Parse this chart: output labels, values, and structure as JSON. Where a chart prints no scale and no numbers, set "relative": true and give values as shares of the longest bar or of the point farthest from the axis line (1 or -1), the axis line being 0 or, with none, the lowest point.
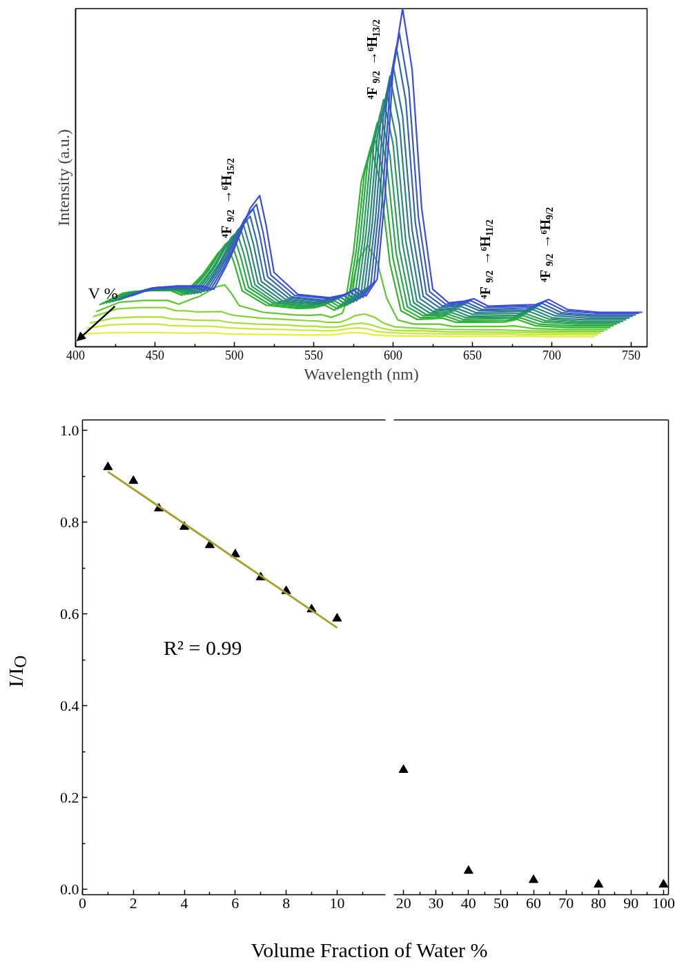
{
  "chart_data": [
    {
      "type": "line",
      "relative": true,
      "xlabel": "Wavelength (nm)",
      "ylabel": "Intensity (a.u.)",
      "xlim": [
        400,
        760
      ],
      "xticks": [
        400,
        {
          "value": 425,
          "label": null
        },
        450,
        {
          "value": 475,
          "label": null
        },
        500,
        {
          "value": 525,
          "label": null
        },
        550,
        {
          "value": 575,
          "label": null
        },
        600,
        {
          "value": 625,
          "label": null
        },
        650,
        {
          "value": 675,
          "label": null
        },
        700,
        {
          "value": 725,
          "label": null
        },
        750
      ],
      "tick_labels": "x",
      "annotations": [
        "V %",
        "⁴F$_{9/2}$→⁶H$_{15/2}$",
        "⁴F$_{9/2}$→⁶H$_{13/2}$",
        "⁴F$_{9/2}$→⁶H$_{11/2}$",
        "⁴F$_{9/2}$→⁶H$_{9/2}$"
      ],
      "series": [
        {
          "color": "#e6ef3a",
          "x": [
            405,
            420,
            435,
            450,
            457,
            465,
            470,
            480,
            486,
            490,
            495,
            510,
            530,
            540,
            547,
            553,
            560,
            565,
            570,
            576,
            582,
            588,
            595,
            605,
            615,
            621,
            630,
            660,
            668,
            680,
            700,
            727
          ],
          "values": [
            0.038,
            0.041,
            0.042,
            0.042,
            0.041,
            0.041,
            0.04,
            0.041,
            0.041,
            0.04,
            0.038,
            0.037,
            0.036,
            0.035,
            0.035,
            0.035,
            0.035,
            0.037,
            0.04,
            0.042,
            0.04,
            0.035,
            0.033,
            0.032,
            0.032,
            0.032,
            0.031,
            0.031,
            0.031,
            0.031,
            0.03,
            0.03
          ]
        },
        {
          "color": "#c8e83a",
          "x": [
            407,
            422,
            437,
            452,
            459,
            467,
            472,
            482,
            488,
            492,
            497,
            512,
            532,
            542,
            549,
            555,
            562,
            567,
            572,
            578,
            584,
            590,
            597,
            607,
            617,
            623,
            632,
            662,
            670,
            682,
            702,
            729
          ],
          "values": [
            0.055,
            0.065,
            0.067,
            0.067,
            0.063,
            0.062,
            0.061,
            0.061,
            0.06,
            0.058,
            0.056,
            0.053,
            0.051,
            0.049,
            0.049,
            0.047,
            0.047,
            0.05,
            0.054,
            0.056,
            0.053,
            0.045,
            0.042,
            0.04,
            0.039,
            0.039,
            0.038,
            0.037,
            0.038,
            0.036,
            0.036,
            0.036
          ]
        },
        {
          "color": "#a8df38",
          "x": [
            409,
            424,
            439,
            454,
            461,
            469,
            474,
            484,
            490,
            494,
            499,
            514,
            534,
            544,
            551,
            557,
            564,
            569,
            574,
            580,
            586,
            592,
            599,
            609,
            619,
            625,
            634,
            664,
            672,
            684,
            704,
            731
          ],
          "values": [
            0.07,
            0.085,
            0.088,
            0.088,
            0.082,
            0.081,
            0.079,
            0.078,
            0.078,
            0.074,
            0.071,
            0.067,
            0.064,
            0.061,
            0.061,
            0.058,
            0.058,
            0.062,
            0.067,
            0.07,
            0.065,
            0.056,
            0.049,
            0.047,
            0.047,
            0.046,
            0.044,
            0.043,
            0.043,
            0.042,
            0.041,
            0.041
          ]
        },
        {
          "color": "#86d535",
          "x": [
            411,
            426,
            441,
            456,
            463,
            471,
            476,
            486,
            492,
            496,
            501,
            516,
            536,
            546,
            553,
            559,
            566,
            571,
            576,
            582,
            588,
            594,
            601,
            611,
            621,
            627,
            636,
            666,
            674,
            686,
            706,
            733
          ],
          "values": [
            0.089,
            0.112,
            0.116,
            0.116,
            0.107,
            0.106,
            0.103,
            0.104,
            0.104,
            0.097,
            0.092,
            0.085,
            0.08,
            0.077,
            0.076,
            0.072,
            0.072,
            0.08,
            0.092,
            0.097,
            0.088,
            0.07,
            0.059,
            0.056,
            0.054,
            0.052,
            0.051,
            0.05,
            0.049,
            0.047,
            0.046,
            0.046
          ]
        },
        {
          "color": "#5cc630",
          "x": [
            413,
            428,
            443,
            458,
            465,
            473,
            478,
            488,
            494,
            498,
            503,
            518,
            538,
            548,
            555,
            561,
            568,
            573,
            578,
            584,
            590,
            596,
            603,
            613,
            623,
            629,
            638,
            668,
            676,
            688,
            708,
            735
          ],
          "values": [
            0.104,
            0.132,
            0.137,
            0.137,
            0.126,
            0.141,
            0.149,
            0.176,
            0.183,
            0.159,
            0.122,
            0.102,
            0.094,
            0.093,
            0.095,
            0.087,
            0.099,
            0.162,
            0.254,
            0.3,
            0.252,
            0.143,
            0.079,
            0.067,
            0.067,
            0.067,
            0.06,
            0.06,
            0.062,
            0.054,
            0.051,
            0.051
          ]
        },
        {
          "color": "#2fb52b",
          "x": [
            415,
            430,
            445,
            460,
            467,
            475,
            480,
            490,
            496,
            500,
            505,
            520,
            540,
            550,
            557,
            563,
            570,
            575,
            580,
            586,
            592,
            598,
            605,
            615,
            625,
            631,
            640,
            670,
            678,
            690,
            710,
            737
          ],
          "values": [
            0.124,
            0.159,
            0.166,
            0.166,
            0.152,
            0.189,
            0.213,
            0.279,
            0.299,
            0.246,
            0.165,
            0.123,
            0.113,
            0.115,
            0.123,
            0.108,
            0.135,
            0.278,
            0.49,
            0.592,
            0.486,
            0.247,
            0.106,
            0.081,
            0.083,
            0.085,
            0.072,
            0.073,
            0.081,
            0.062,
            0.057,
            0.057
          ]
        },
        {
          "color": "#2aae3a",
          "x": [
            417,
            432,
            447,
            462,
            469,
            477,
            482,
            492,
            498,
            502,
            507,
            522,
            542,
            552,
            559,
            565,
            572,
            577,
            582,
            588,
            594,
            600,
            607,
            617,
            627,
            633,
            642,
            672,
            680,
            692,
            712,
            739
          ],
          "values": [
            0.127,
            0.16,
            0.167,
            0.167,
            0.154,
            0.193,
            0.219,
            0.289,
            0.31,
            0.255,
            0.17,
            0.126,
            0.116,
            0.118,
            0.128,
            0.112,
            0.141,
            0.291,
            0.515,
            0.623,
            0.511,
            0.26,
            0.112,
            0.086,
            0.088,
            0.091,
            0.076,
            0.078,
            0.086,
            0.067,
            0.062,
            0.062
          ]
        },
        {
          "color": "#27a64a",
          "x": [
            419,
            434,
            449,
            464,
            471,
            479,
            484,
            494,
            500,
            504,
            509,
            524,
            544,
            554,
            561,
            567,
            574,
            579,
            584,
            590,
            596,
            602,
            609,
            619,
            629,
            635,
            644,
            674,
            682,
            694,
            714,
            741
          ],
          "values": [
            0.129,
            0.162,
            0.168,
            0.168,
            0.155,
            0.198,
            0.227,
            0.302,
            0.324,
            0.266,
            0.175,
            0.13,
            0.119,
            0.123,
            0.133,
            0.116,
            0.147,
            0.308,
            0.547,
            0.662,
            0.543,
            0.276,
            0.118,
            0.092,
            0.093,
            0.096,
            0.081,
            0.084,
            0.092,
            0.073,
            0.067,
            0.067
          ]
        },
        {
          "color": "#259d5a",
          "x": [
            421,
            436,
            451,
            466,
            473,
            481,
            486,
            496,
            502,
            506,
            511,
            526,
            546,
            556,
            563,
            569,
            576,
            581,
            586,
            592,
            598,
            604,
            611,
            621,
            631,
            637,
            646,
            676,
            684,
            696,
            716,
            743
          ],
          "values": [
            0.131,
            0.162,
            0.168,
            0.168,
            0.156,
            0.2,
            0.231,
            0.31,
            0.334,
            0.274,
            0.179,
            0.131,
            0.121,
            0.126,
            0.136,
            0.12,
            0.152,
            0.32,
            0.571,
            0.691,
            0.568,
            0.288,
            0.124,
            0.095,
            0.098,
            0.101,
            0.086,
            0.088,
            0.097,
            0.077,
            0.071,
            0.071
          ]
        },
        {
          "color": "#259268",
          "x": [
            423,
            438,
            453,
            468,
            475,
            483,
            488,
            498,
            504,
            508,
            513,
            528,
            548,
            558,
            565,
            571,
            578,
            583,
            588,
            594,
            600,
            606,
            613,
            623,
            633,
            639,
            648,
            678,
            686,
            698,
            718,
            745
          ],
          "values": [
            0.133,
            0.163,
            0.169,
            0.169,
            0.157,
            0.205,
            0.239,
            0.323,
            0.349,
            0.284,
            0.183,
            0.134,
            0.125,
            0.129,
            0.142,
            0.123,
            0.159,
            0.337,
            0.602,
            0.731,
            0.6,
            0.304,
            0.13,
            0.1,
            0.103,
            0.107,
            0.09,
            0.093,
            0.104,
            0.082,
            0.075,
            0.075
          ]
        },
        {
          "color": "#268777",
          "x": [
            425,
            440,
            455,
            470,
            477,
            485,
            490,
            500,
            506,
            510,
            515,
            530,
            550,
            560,
            567,
            573,
            580,
            585,
            590,
            596,
            602,
            608,
            615,
            625,
            635,
            641,
            650,
            680,
            688,
            700,
            720,
            747
          ],
          "values": [
            0.136,
            0.164,
            0.17,
            0.17,
            0.159,
            0.209,
            0.243,
            0.33,
            0.357,
            0.291,
            0.188,
            0.137,
            0.128,
            0.133,
            0.146,
            0.128,
            0.163,
            0.348,
            0.62,
            0.752,
            0.618,
            0.314,
            0.135,
            0.105,
            0.109,
            0.112,
            0.096,
            0.099,
            0.11,
            0.086,
            0.08,
            0.08
          ]
        },
        {
          "color": "#287c88",
          "x": [
            427,
            442,
            457,
            472,
            479,
            487,
            492,
            502,
            508,
            512,
            517,
            532,
            552,
            562,
            569,
            575,
            582,
            587,
            592,
            598,
            604,
            610,
            617,
            627,
            637,
            643,
            652,
            682,
            690,
            702,
            722,
            749
          ],
          "values": [
            0.138,
            0.166,
            0.171,
            0.171,
            0.16,
            0.214,
            0.252,
            0.345,
            0.373,
            0.304,
            0.193,
            0.141,
            0.131,
            0.138,
            0.151,
            0.132,
            0.171,
            0.368,
            0.658,
            0.8,
            0.658,
            0.333,
            0.142,
            0.11,
            0.114,
            0.119,
            0.101,
            0.105,
            0.115,
            0.092,
            0.085,
            0.085
          ]
        },
        {
          "color": "#2d709a",
          "x": [
            429,
            444,
            459,
            474,
            481,
            489,
            494,
            504,
            510,
            514,
            519,
            534,
            554,
            564,
            571,
            577,
            584,
            589,
            594,
            600,
            606,
            612,
            619,
            629,
            639,
            645,
            654,
            684,
            692,
            704,
            724,
            751
          ],
          "values": [
            0.142,
            0.169,
            0.174,
            0.174,
            0.164,
            0.22,
            0.26,
            0.356,
            0.386,
            0.314,
            0.199,
            0.145,
            0.135,
            0.142,
            0.157,
            0.136,
            0.177,
            0.382,
            0.684,
            0.832,
            0.683,
            0.346,
            0.149,
            0.116,
            0.12,
            0.125,
            0.107,
            0.109,
            0.122,
            0.097,
            0.09,
            0.09
          ]
        },
        {
          "color": "#3263b0",
          "x": [
            431,
            446,
            461,
            476,
            483,
            491,
            496,
            506,
            512,
            516,
            521,
            536,
            556,
            566,
            573,
            579,
            586,
            591,
            596,
            602,
            608,
            614,
            621,
            631,
            641,
            647,
            656,
            686,
            694,
            706,
            726,
            753
          ],
          "values": [
            0.145,
            0.171,
            0.176,
            0.176,
            0.166,
            0.226,
            0.269,
            0.374,
            0.407,
            0.33,
            0.207,
            0.148,
            0.138,
            0.147,
            0.162,
            0.142,
            0.184,
            0.404,
            0.729,
            0.887,
            0.729,
            0.368,
            0.156,
            0.121,
            0.125,
            0.13,
            0.11,
            0.115,
            0.128,
            0.101,
            0.094,
            0.094
          ]
        },
        {
          "color": "#3757c8",
          "x": [
            433,
            448,
            463,
            478,
            485,
            493,
            498,
            508,
            514,
            518,
            523,
            538,
            558,
            568,
            575,
            581,
            588,
            593,
            598,
            604,
            610,
            616,
            623,
            633,
            643,
            649,
            658,
            688,
            696,
            708,
            728,
            755
          ],
          "values": [
            0.148,
            0.174,
            0.179,
            0.179,
            0.168,
            0.232,
            0.278,
            0.388,
            0.421,
            0.341,
            0.212,
            0.152,
            0.143,
            0.151,
            0.168,
            0.146,
            0.192,
            0.422,
            0.761,
            0.927,
            0.761,
            0.383,
            0.163,
            0.126,
            0.13,
            0.136,
            0.116,
            0.12,
            0.134,
            0.106,
            0.099,
            0.099
          ]
        },
        {
          "color": "#3b4be0",
          "x": [
            435,
            450,
            465,
            480,
            487,
            495,
            500,
            510,
            516,
            520,
            525,
            540,
            560,
            570,
            577,
            583,
            590,
            595,
            600,
            606,
            612,
            618,
            625,
            635,
            645,
            651,
            660,
            690,
            698,
            710,
            730,
            757
          ],
          "values": [
            0.15,
            0.175,
            0.18,
            0.18,
            0.17,
            0.24,
            0.29,
            0.41,
            0.447,
            0.36,
            0.22,
            0.155,
            0.145,
            0.155,
            0.173,
            0.15,
            0.2,
            0.45,
            0.82,
            1.0,
            0.82,
            0.41,
            0.17,
            0.13,
            0.135,
            0.142,
            0.12,
            0.125,
            0.14,
            0.11,
            0.102,
            0.102
          ]
        }
      ]
    },
    {
      "type": "scatter",
      "xlabel": "Volume Fraction of Water %",
      "ylabel": "I/I$_{O}$",
      "xlim": [
        0,
        11.9
      ],
      "ylim": [
        -0.012,
        1.023
      ],
      "xticks": [
        0,
        {
          "value": 1,
          "label": null
        },
        2,
        {
          "value": 3,
          "label": null
        },
        4,
        {
          "value": 5,
          "label": null
        },
        6,
        {
          "value": 7,
          "label": null
        },
        8,
        {
          "value": 9,
          "label": null
        },
        10,
        {
          "value": 11,
          "label": null
        }
      ],
      "yticks": [
        {
          "value": 0,
          "label": "0.0"
        },
        {
          "value": 0.1,
          "label": null
        },
        {
          "value": 0.2,
          "label": "0.2"
        },
        {
          "value": 0.3,
          "label": null
        },
        {
          "value": 0.4,
          "label": "0.4"
        },
        {
          "value": 0.5,
          "label": null
        },
        {
          "value": 0.6,
          "label": "0.6"
        },
        {
          "value": 0.7,
          "label": null
        },
        {
          "value": 0.8,
          "label": "0.8"
        },
        {
          "value": 0.9,
          "label": null
        },
        {
          "value": 1.0,
          "label": "1.0"
        }
      ],
      "marker": "triangle",
      "annotations": [
        "R² = 0.99"
      ],
      "series": [
        {
          "type": "scatter",
          "color": "#000000",
          "x": [
            1,
            2,
            3,
            4,
            5,
            6,
            7,
            8,
            9,
            10
          ],
          "values": [
            0.92,
            0.89,
            0.83,
            0.79,
            0.75,
            0.73,
            0.68,
            0.65,
            0.61,
            0.59
          ]
        },
        {
          "type": "line",
          "marker": "none",
          "color": "#a6a02e",
          "x": [
            1,
            10
          ],
          "values": [
            0.91,
            0.57
          ]
        }
      ]
    },
    {
      "type": "scatter",
      "xlim": [
        17,
        101.5
      ],
      "ylim": [
        -0.012,
        1.023
      ],
      "xticks": [
        20,
        {
          "value": 25,
          "label": null
        },
        30,
        {
          "value": 35,
          "label": null
        },
        40,
        {
          "value": 45,
          "label": null
        },
        50,
        {
          "value": 55,
          "label": null
        },
        60,
        {
          "value": 65,
          "label": null
        },
        70,
        {
          "value": 75,
          "label": null
        },
        80,
        {
          "value": 85,
          "label": null
        },
        90,
        {
          "value": 95,
          "label": null
        },
        100
      ],
      "tick_labels": "x",
      "marker": "triangle",
      "series": [
        {
          "color": "#000000",
          "x": [
            20,
            40,
            60,
            80,
            100
          ],
          "values": [
            0.26,
            0.04,
            0.02,
            0.01,
            0.01
          ]
        }
      ]
    }
  ]
}
